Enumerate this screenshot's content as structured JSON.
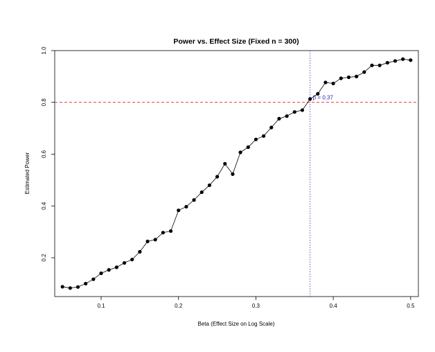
{
  "chart_data": {
    "type": "line",
    "title": "Power vs. Effect Size (Fixed n = 300)",
    "xlabel": "Beta (Effect Size on Log Scale)",
    "ylabel": "Estimated Power",
    "xlim": [
      0.04,
      0.51
    ],
    "ylim": [
      0.05,
      1.0
    ],
    "x_ticks": [
      0.1,
      0.2,
      0.3,
      0.4,
      0.5
    ],
    "x_tick_labels": [
      "0.1",
      "0.2",
      "0.3",
      "0.4",
      "0.5"
    ],
    "y_ticks": [
      0.2,
      0.4,
      0.6,
      0.8,
      1.0
    ],
    "y_tick_labels": [
      "0.2",
      "0.4",
      "0.6",
      "0.8",
      "1.0"
    ],
    "grid": false,
    "series": [
      {
        "x": [
          0.05,
          0.06,
          0.07,
          0.08,
          0.09,
          0.1,
          0.11,
          0.12,
          0.13,
          0.14,
          0.15,
          0.16,
          0.17,
          0.18,
          0.19,
          0.2,
          0.21,
          0.22,
          0.23,
          0.24,
          0.25,
          0.26,
          0.27,
          0.28,
          0.29,
          0.3,
          0.31,
          0.32,
          0.33,
          0.34,
          0.35,
          0.36,
          0.37,
          0.38,
          0.39,
          0.4,
          0.41,
          0.42,
          0.43,
          0.44,
          0.45,
          0.46,
          0.47,
          0.48,
          0.49,
          0.5
        ],
        "values": [
          0.088,
          0.083,
          0.087,
          0.1,
          0.117,
          0.14,
          0.153,
          0.163,
          0.18,
          0.193,
          0.223,
          0.263,
          0.27,
          0.297,
          0.303,
          0.383,
          0.397,
          0.423,
          0.453,
          0.48,
          0.513,
          0.563,
          0.523,
          0.607,
          0.627,
          0.657,
          0.67,
          0.703,
          0.737,
          0.747,
          0.763,
          0.77,
          0.813,
          0.833,
          0.877,
          0.873,
          0.893,
          0.897,
          0.9,
          0.917,
          0.943,
          0.943,
          0.953,
          0.96,
          0.967,
          0.963
        ],
        "color": "#000000"
      }
    ],
    "reference_lines": [
      {
        "orientation": "horizontal",
        "value": 0.8,
        "color": "#e41a1c",
        "style": "dashed"
      },
      {
        "orientation": "vertical",
        "value": 0.37,
        "color": "#3f51b5",
        "style": "dotted"
      }
    ],
    "annotations": [
      {
        "text": "β = 0.37",
        "x": 0.37,
        "y": 0.8,
        "color": "#1f1fa8"
      }
    ]
  }
}
